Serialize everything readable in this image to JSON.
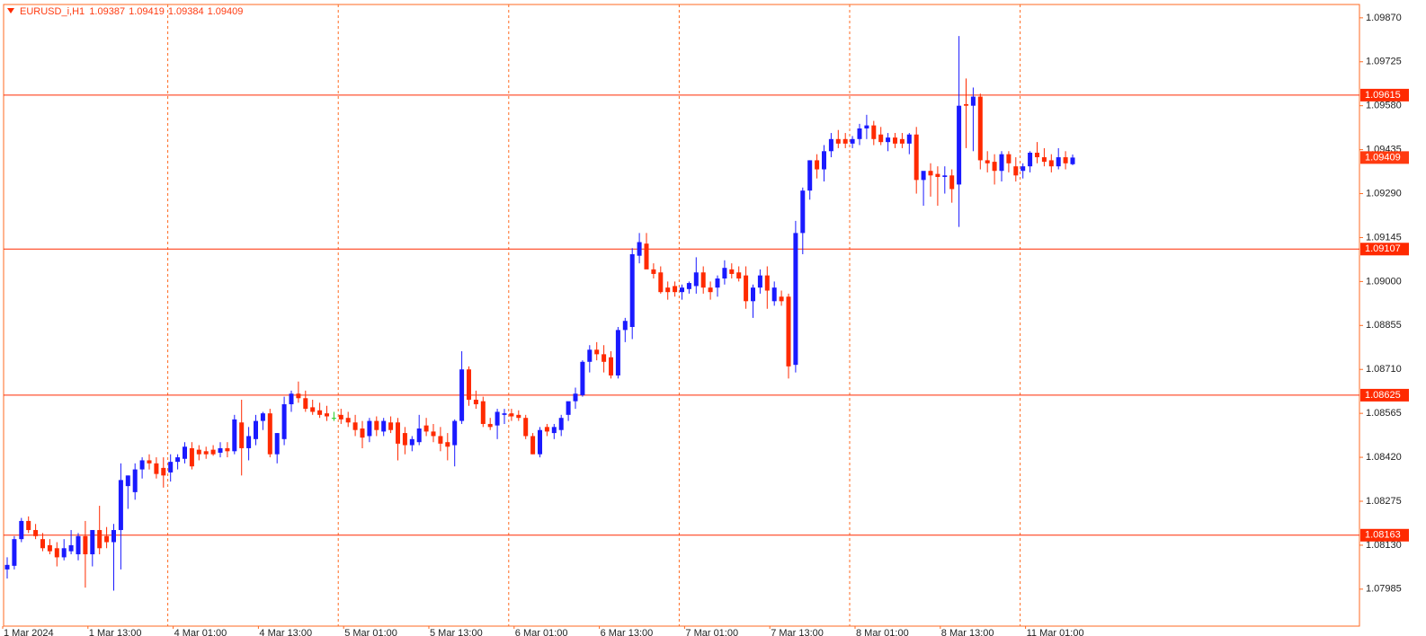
{
  "chart_data": {
    "type": "candlestick",
    "symbol": "EURUSD_i,H1",
    "bull_color": "#1a1aff",
    "bear_color": "#ff2a00",
    "doji_color": "#22cc22",
    "level_color": "#ff2a00",
    "price_color": "#ff3a10",
    "categories": [
      "1 Mar 2024",
      null,
      null,
      null,
      null,
      null,
      null,
      null,
      null,
      null,
      null,
      null,
      "1 Mar 13:00",
      null,
      null,
      null,
      null,
      null,
      null,
      null,
      null,
      null,
      null,
      null,
      "4 Mar 01:00",
      null,
      null,
      null,
      null,
      null,
      null,
      null,
      null,
      null,
      null,
      null,
      "4 Mar 13:00",
      null,
      null,
      null,
      null,
      null,
      null,
      null,
      null,
      null,
      null,
      null,
      "5 Mar 01:00",
      null,
      null,
      null,
      null,
      null,
      null,
      null,
      null,
      null,
      null,
      null,
      "5 Mar 13:00",
      null,
      null,
      null,
      null,
      null,
      null,
      null,
      null,
      null,
      null,
      null,
      "6 Mar 01:00",
      null,
      null,
      null,
      null,
      null,
      null,
      null,
      null,
      null,
      null,
      null,
      "6 Mar 13:00",
      null,
      null,
      null,
      null,
      null,
      null,
      null,
      null,
      null,
      null,
      null,
      "7 Mar 01:00",
      null,
      null,
      null,
      null,
      null,
      null,
      null,
      null,
      null,
      null,
      null,
      "7 Mar 13:00",
      null,
      null,
      null,
      null,
      null,
      null,
      null,
      null,
      null,
      null,
      null,
      "8 Mar 01:00",
      null,
      null,
      null,
      null,
      null,
      null,
      null,
      null,
      null,
      null,
      null,
      "8 Mar 13:00",
      null,
      null,
      null,
      null,
      null,
      null,
      null,
      null,
      null,
      null,
      null,
      "11 Mar 01:00",
      null,
      null,
      null,
      null,
      null,
      null
    ],
    "open": [
      1.0805,
      1.08062,
      1.0815,
      1.0821,
      1.0818,
      1.0815,
      1.0813,
      1.0812,
      1.0809,
      1.0811,
      1.081,
      1.0816,
      1.081,
      1.0818,
      1.0816,
      1.0814,
      1.0818,
      1.08325,
      1.08305,
      1.0838,
      1.0841,
      1.084,
      1.08385,
      1.0837,
      1.08405,
      1.08415,
      1.0845,
      1.08445,
      1.0844,
      1.08445,
      1.08435,
      1.0845,
      1.0844,
      1.08535,
      1.0845,
      1.0848,
      1.0854,
      1.08565,
      1.0843,
      1.0848,
      1.08595,
      1.0863,
      1.08615,
      1.08585,
      1.08575,
      1.08565,
      1.0855,
      1.0856,
      1.0855,
      1.08535,
      1.08515,
      1.0849,
      1.0854,
      1.08505,
      1.08535,
      1.08535,
      1.085,
      1.0846,
      1.0847,
      1.08525,
      1.08505,
      1.0849,
      1.0847,
      1.0846,
      1.0854,
      1.0871,
      1.0861,
      1.08605,
      1.0853,
      1.08525,
      1.0856,
      1.08565,
      1.0856,
      1.0855,
      1.0849,
      1.0843,
      1.0852,
      1.085,
      1.0851,
      1.0856,
      1.08605,
      1.08625,
      1.08735,
      1.08775,
      1.0876,
      1.0875,
      1.0869,
      1.0884,
      1.0885,
      1.09085,
      1.09125,
      1.0904,
      1.0903,
      1.0898,
      1.08985,
      1.08965,
      1.08975,
      1.08985,
      1.0903,
      1.0898,
      1.0898,
      1.0901,
      1.0904,
      1.0903,
      1.0902,
      1.08935,
      1.0898,
      1.0902,
      1.08935,
      1.0895,
      1.0895,
      1.08725,
      1.0916,
      1.093,
      1.094,
      1.0937,
      1.0943,
      1.0947,
      1.0947,
      1.09455,
      1.0947,
      1.09505,
      1.09515,
      1.09485,
      1.0946,
      1.09475,
      1.0947,
      1.09455,
      1.09485,
      1.09335,
      1.09365,
      1.09355,
      1.09345,
      1.0935,
      1.0932,
      1.09585,
      1.0958,
      1.0961,
      1.094,
      1.09395,
      1.09365,
      1.0942,
      1.0938,
      1.09365,
      1.0938,
      1.09425,
      1.0941,
      1.094,
      1.0938,
      1.0941,
      1.09387
    ],
    "high": [
      1.0809,
      1.0816,
      1.0822,
      1.08225,
      1.082,
      1.0817,
      1.0815,
      1.0814,
      1.0815,
      1.0818,
      1.0817,
      1.0821,
      1.0818,
      1.0826,
      1.0819,
      1.082,
      1.084,
      1.0836,
      1.084,
      1.0842,
      1.0843,
      1.0842,
      1.0842,
      1.0843,
      1.0843,
      1.0847,
      1.0847,
      1.0846,
      1.08455,
      1.0846,
      1.0847,
      1.0847,
      1.0856,
      1.0861,
      1.0852,
      1.0856,
      1.0857,
      1.0858,
      1.085,
      1.0862,
      1.0864,
      1.0867,
      1.0864,
      1.0861,
      1.086,
      1.0859,
      1.0857,
      1.0858,
      1.0857,
      1.0856,
      1.0854,
      1.0855,
      1.08555,
      1.0855,
      1.08555,
      1.0855,
      1.0852,
      1.0849,
      1.0856,
      1.0855,
      1.0853,
      1.0852,
      1.085,
      1.08545,
      1.0877,
      1.0872,
      1.0864,
      1.0862,
      1.0855,
      1.0858,
      1.0858,
      1.0858,
      1.08575,
      1.0856,
      1.085,
      1.0852,
      1.0853,
      1.0853,
      1.0856,
      1.086,
      1.0865,
      1.0874,
      1.0879,
      1.088,
      1.0879,
      1.0877,
      1.0885,
      1.0888,
      1.0911,
      1.0916,
      1.0916,
      1.0906,
      1.0905,
      1.09,
      1.09,
      1.0899,
      1.09,
      1.0908,
      1.0905,
      1.09,
      1.0902,
      1.0907,
      1.0906,
      1.0905,
      1.0905,
      1.0899,
      1.0904,
      1.0905,
      1.09,
      1.0897,
      1.0896,
      1.092,
      1.0931,
      1.094,
      1.0942,
      1.0945,
      1.0949,
      1.095,
      1.0949,
      1.0948,
      1.0952,
      1.0955,
      1.0953,
      1.0951,
      1.0949,
      1.0949,
      1.0949,
      1.0949,
      1.0951,
      1.0936,
      1.0939,
      1.0938,
      1.0938,
      1.0937,
      1.0981,
      1.0967,
      1.0964,
      1.0962,
      1.0943,
      1.0942,
      1.0943,
      1.0943,
      1.0941,
      1.0939,
      1.0943,
      1.0946,
      1.0944,
      1.0942,
      1.0944,
      1.0943,
      1.09419
    ],
    "low": [
      1.0802,
      1.0805,
      1.0814,
      1.0817,
      1.0815,
      1.0811,
      1.081,
      1.0806,
      1.0808,
      1.081,
      1.0808,
      1.0799,
      1.0806,
      1.081,
      1.0812,
      1.0798,
      1.0805,
      1.0825,
      1.0828,
      1.0835,
      1.0838,
      1.0835,
      1.0832,
      1.0834,
      1.0838,
      1.084,
      1.0838,
      1.0841,
      1.08415,
      1.08425,
      1.0842,
      1.0842,
      1.0843,
      1.0836,
      1.0841,
      1.0846,
      1.0851,
      1.0842,
      1.084,
      1.0846,
      1.0857,
      1.086,
      1.0857,
      1.0856,
      1.0855,
      1.0854,
      1.0854,
      1.0853,
      1.0852,
      1.0849,
      1.0845,
      1.0847,
      1.0849,
      1.0849,
      1.085,
      1.0841,
      1.0843,
      1.0844,
      1.0846,
      1.0849,
      1.0847,
      1.0844,
      1.0841,
      1.0839,
      1.0853,
      1.0859,
      1.0858,
      1.0852,
      1.0851,
      1.0848,
      1.0853,
      1.0854,
      1.0854,
      1.0848,
      1.0843,
      1.0842,
      1.0849,
      1.0848,
      1.0849,
      1.0854,
      1.0858,
      1.0862,
      1.087,
      1.0874,
      1.087,
      1.0868,
      1.0868,
      1.088,
      1.0881,
      1.0906,
      1.0905,
      1.0901,
      1.0896,
      1.0894,
      1.0895,
      1.0894,
      1.0896,
      1.0896,
      1.0896,
      1.0894,
      1.0895,
      1.0899,
      1.0901,
      1.09,
      1.0891,
      1.0888,
      1.0896,
      1.0891,
      1.0892,
      1.0892,
      1.0868,
      1.087,
      1.0909,
      1.0927,
      1.0934,
      1.0933,
      1.0941,
      1.0944,
      1.0944,
      1.0944,
      1.0945,
      1.0947,
      1.0945,
      1.0945,
      1.0943,
      1.0944,
      1.0944,
      1.0942,
      1.0929,
      1.0925,
      1.0928,
      1.0925,
      1.0929,
      1.0926,
      1.0918,
      1.0944,
      1.0943,
      1.0937,
      1.0936,
      1.0932,
      1.0933,
      1.0936,
      1.0933,
      1.0934,
      1.0936,
      1.0939,
      1.0938,
      1.0936,
      1.0937,
      1.0937,
      1.09384
    ],
    "close": [
      1.08065,
      1.0815,
      1.0821,
      1.0818,
      1.0816,
      1.0812,
      1.0811,
      1.0809,
      1.0812,
      1.0813,
      1.0816,
      1.081,
      1.0818,
      1.0812,
      1.0814,
      1.0818,
      1.08345,
      1.0836,
      1.0838,
      1.0841,
      1.084,
      1.08365,
      1.0836,
      1.08405,
      1.0842,
      1.08455,
      1.0839,
      1.0843,
      1.0843,
      1.0843,
      1.0845,
      1.0844,
      1.08545,
      1.0845,
      1.0849,
      1.0854,
      1.08565,
      1.0843,
      1.085,
      1.08595,
      1.0863,
      1.08615,
      1.0858,
      1.0857,
      1.0856,
      1.08555,
      1.0855,
      1.08545,
      1.08535,
      1.0851,
      1.08485,
      1.0854,
      1.0851,
      1.0854,
      1.0851,
      1.08465,
      1.0846,
      1.0848,
      1.08515,
      1.08505,
      1.0849,
      1.08465,
      1.08455,
      1.0854,
      1.0871,
      1.0861,
      1.08595,
      1.0853,
      1.0852,
      1.0857,
      1.08565,
      1.08555,
      1.0855,
      1.0849,
      1.0843,
      1.0851,
      1.08505,
      1.0852,
      1.0855,
      1.08605,
      1.0863,
      1.08735,
      1.08775,
      1.0876,
      1.08735,
      1.0869,
      1.0884,
      1.0887,
      1.0909,
      1.0913,
      1.0904,
      1.09025,
      1.08965,
      1.08965,
      1.08965,
      1.0898,
      1.08995,
      1.0903,
      1.0898,
      1.08965,
      1.0901,
      1.09045,
      1.09025,
      1.0901,
      1.08935,
      1.0898,
      1.0902,
      1.0897,
      1.0898,
      1.08935,
      1.0872,
      1.0916,
      1.093,
      1.094,
      1.0937,
      1.0943,
      1.0947,
      1.09455,
      1.09455,
      1.0947,
      1.09505,
      1.09515,
      1.0947,
      1.0946,
      1.09475,
      1.09455,
      1.09455,
      1.09485,
      1.09335,
      1.09365,
      1.0935,
      1.09345,
      1.0935,
      1.09305,
      1.0958,
      1.0958,
      1.0961,
      1.094,
      1.0939,
      1.09365,
      1.0942,
      1.0939,
      1.0935,
      1.0938,
      1.09425,
      1.0941,
      1.09395,
      1.0938,
      1.0941,
      1.0939,
      1.09409
    ],
    "ylim": [
      1.07863,
      1.09914
    ],
    "yticks": [
      {
        "value": 1.0987,
        "label": "1.09870"
      },
      1.09725,
      {
        "value": 1.0958,
        "label": "1.09580"
      },
      1.09435,
      {
        "value": 1.0929,
        "label": "1.09290"
      },
      1.09145,
      {
        "value": 1.09,
        "label": "1.09000"
      },
      1.08855,
      {
        "value": 1.0871,
        "label": "1.08710"
      },
      1.08565,
      {
        "value": 1.0842,
        "label": "1.08420"
      },
      1.08275,
      {
        "value": 1.0813,
        "label": "1.08130"
      },
      1.07985
    ],
    "levels": [
      1.09615,
      1.09107,
      1.08625,
      1.08163
    ],
    "grid": true
  }
}
